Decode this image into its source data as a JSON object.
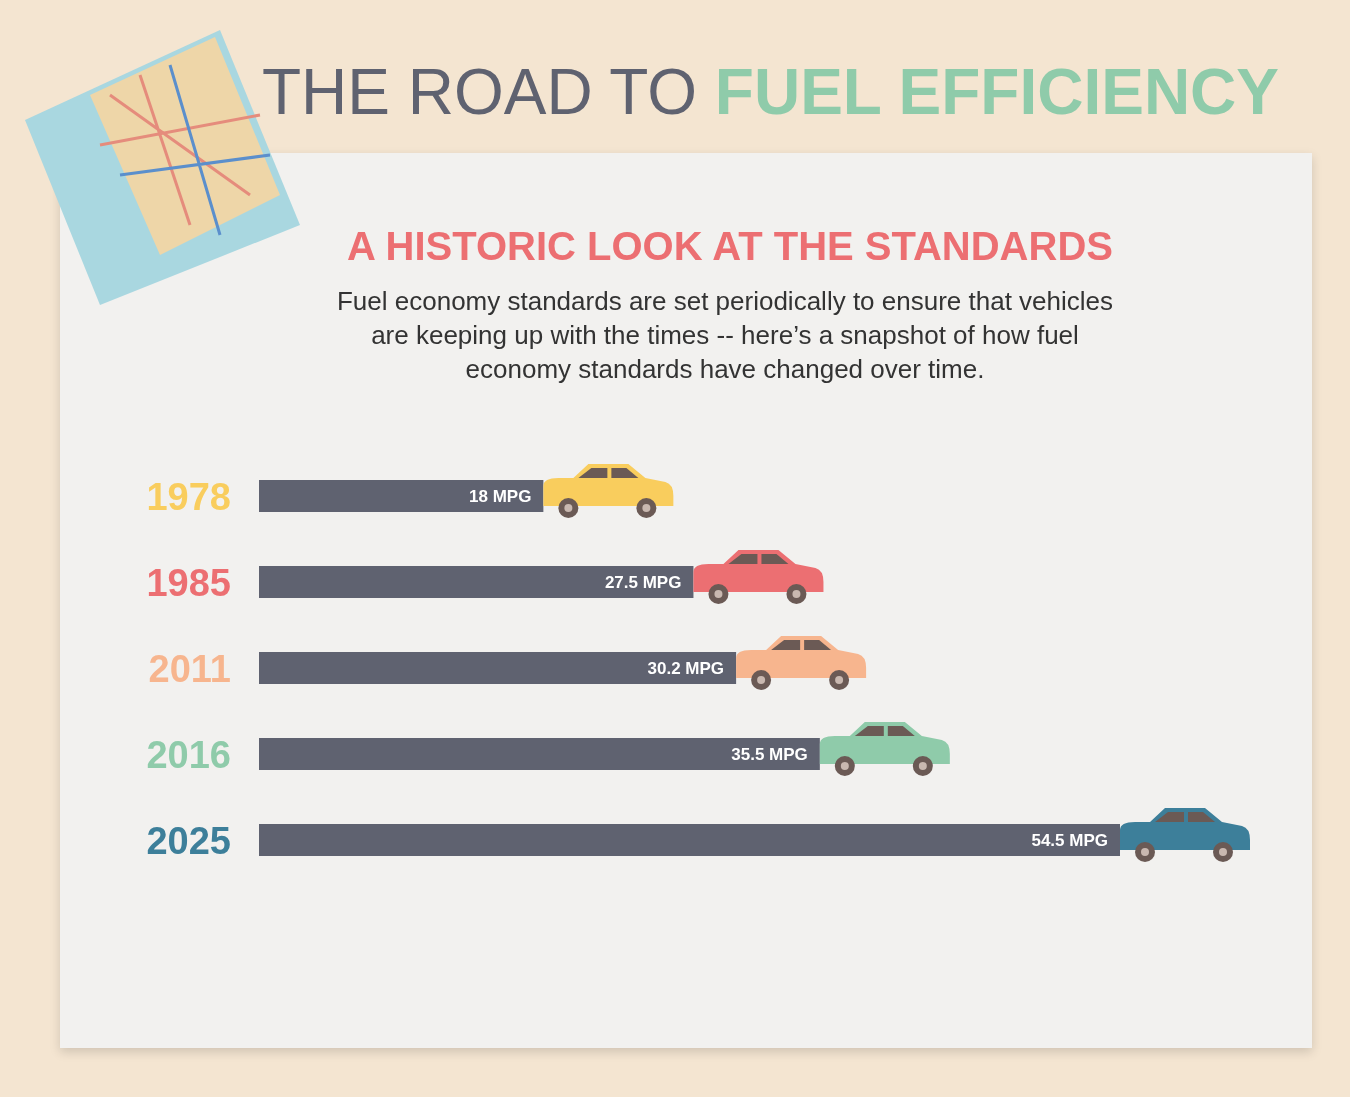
{
  "chart_data": {
    "type": "bar",
    "orientation": "horizontal",
    "title": "THE ROAD TO FUEL EFFICIENCY",
    "subtitle": "A HISTORIC LOOK AT THE STANDARDS",
    "annotations": [
      "Fuel economy standards are set periodically to ensure that vehicles are keeping up with the times -- here’s a snapshot of how fuel economy standards have changed over time."
    ],
    "categories": [
      "1978",
      "1985",
      "2011",
      "2016",
      "2025"
    ],
    "values": [
      18,
      27.5,
      30.2,
      35.5,
      54.5
    ],
    "value_labels": [
      "18 MPG",
      "27.5 MPG",
      "30.2 MPG",
      "35.5 MPG",
      "54.5 MPG"
    ],
    "color": "#5f6270"
  }
}
